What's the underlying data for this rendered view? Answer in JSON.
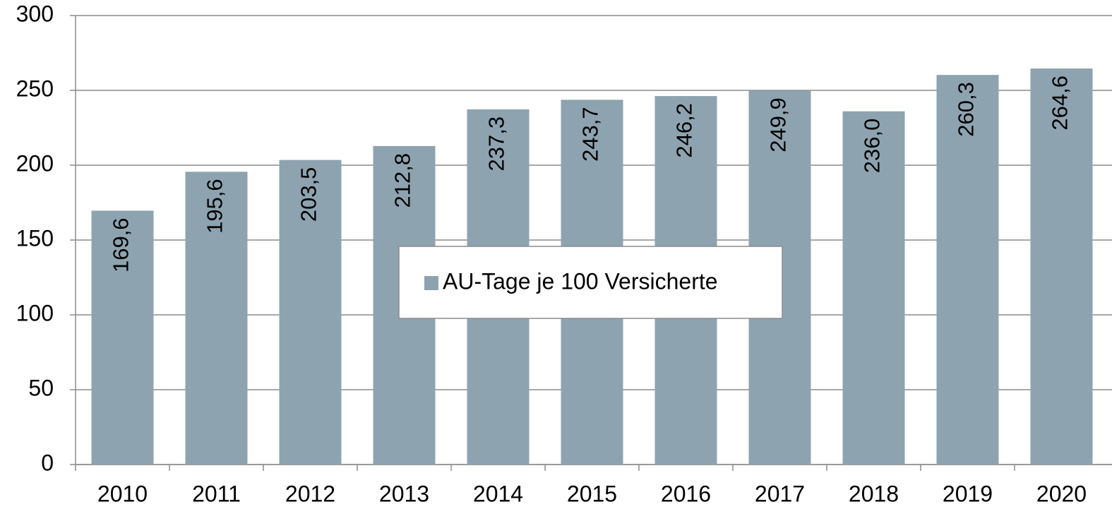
{
  "chart_data": {
    "type": "bar",
    "categories": [
      "2010",
      "2011",
      "2012",
      "2013",
      "2014",
      "2015",
      "2016",
      "2017",
      "2018",
      "2019",
      "2020"
    ],
    "series": [
      {
        "name": "AU-Tage je 100 Versicherte",
        "color": "#8ea3b0",
        "values": [
          169.6,
          195.6,
          203.5,
          212.8,
          237.3,
          243.7,
          246.2,
          249.9,
          236.0,
          260.3,
          264.6
        ],
        "value_labels": [
          "169,6",
          "195,6",
          "203,5",
          "212,8",
          "237,3",
          "243,7",
          "246,2",
          "249,9",
          "236,0",
          "260,3",
          "264,6"
        ]
      }
    ],
    "ylim": [
      0,
      300
    ],
    "yticks": [
      0,
      50,
      100,
      150,
      200,
      250,
      300
    ],
    "grid": true,
    "legend": "center"
  }
}
